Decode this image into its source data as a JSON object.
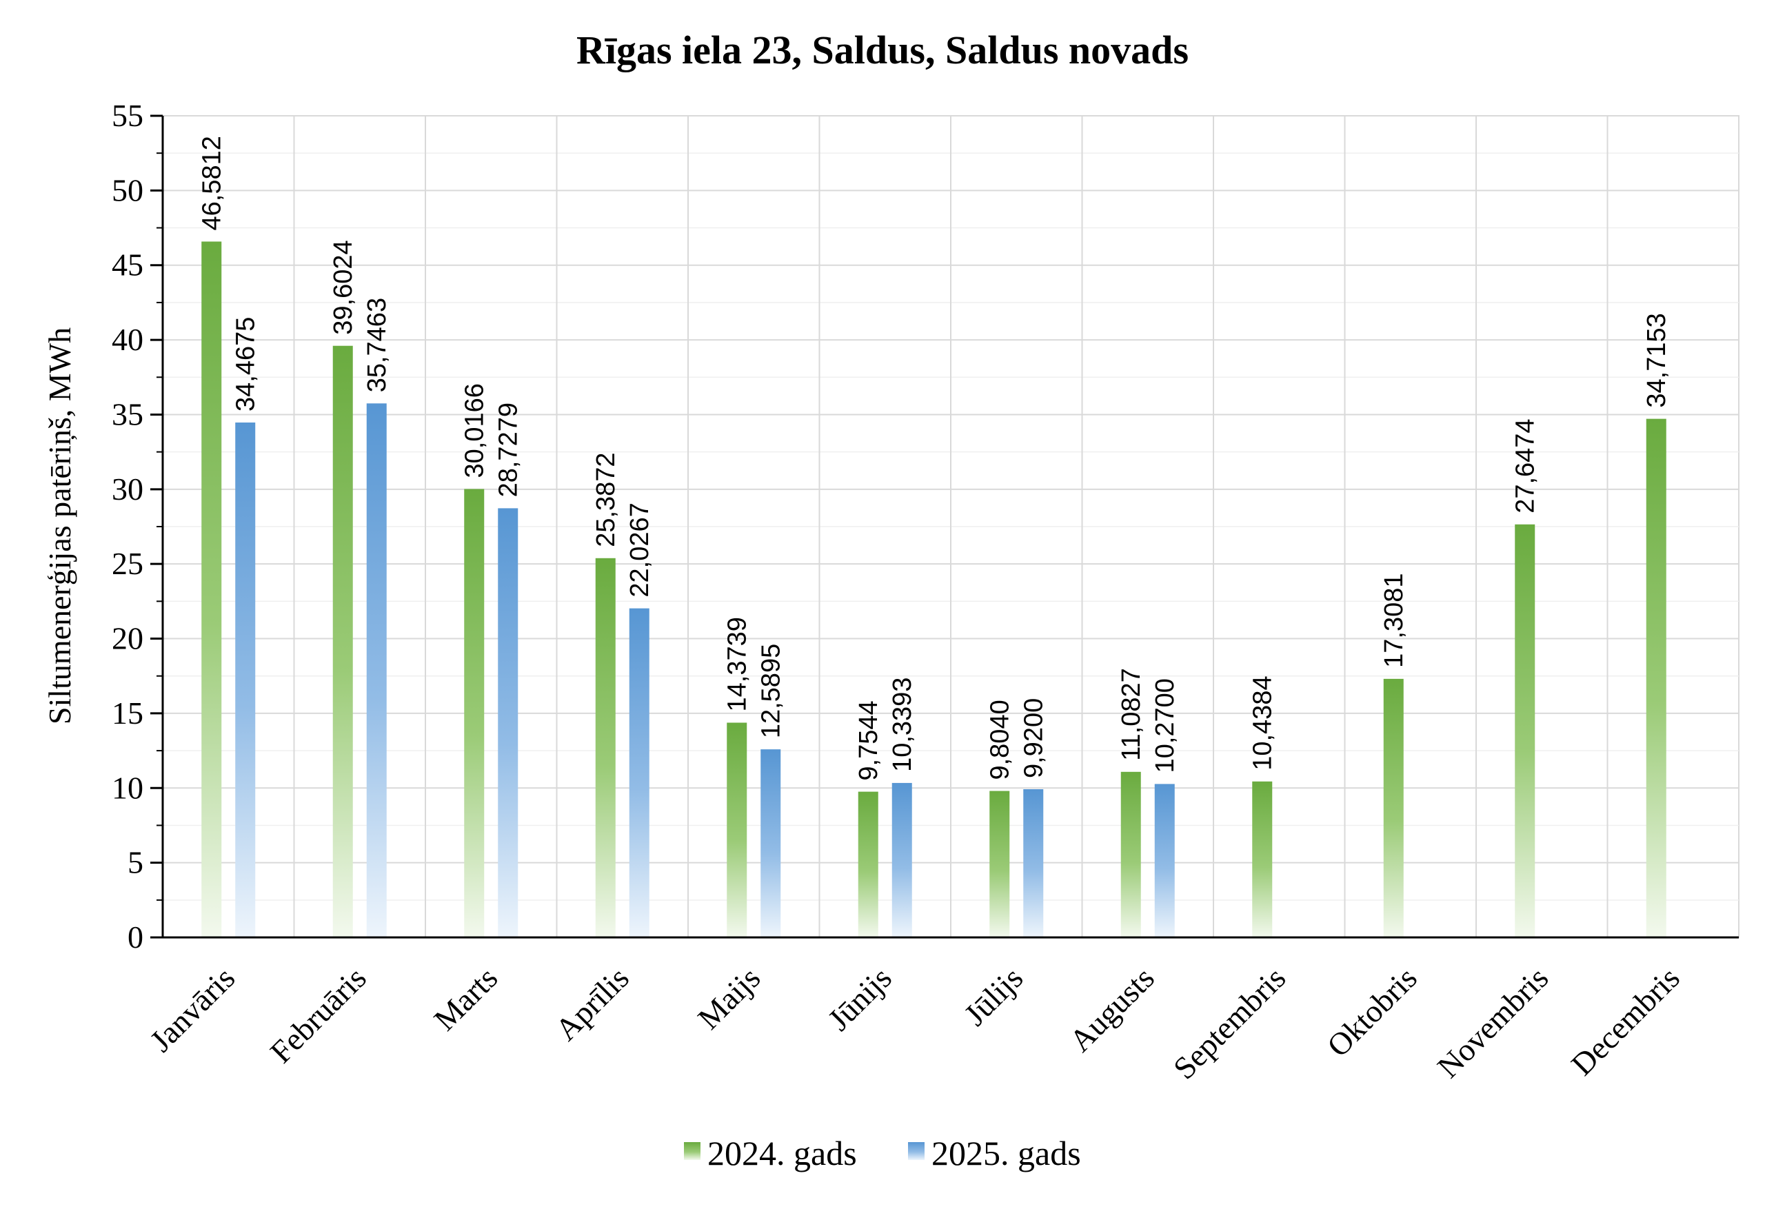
{
  "chart_data": {
    "type": "bar",
    "title": "Rīgas iela 23, Saldus, Saldus novads",
    "xlabel": "",
    "ylabel": "Siltumenerģijas patēriņš, MWh",
    "ylim": [
      0,
      55
    ],
    "yticks": [
      0,
      5,
      10,
      15,
      20,
      25,
      30,
      35,
      40,
      45,
      50,
      55
    ],
    "grid": true,
    "legend_position": "bottom",
    "categories": [
      "Janvāris",
      "Februāris",
      "Marts",
      "Aprīlis",
      "Maijs",
      "Jūnijs",
      "Jūlijs",
      "Augusts",
      "Septembris",
      "Oktobris",
      "Novembris",
      "Decembris"
    ],
    "series": [
      {
        "name": "2024. gads",
        "color": "#70ad47",
        "values": [
          46.5812,
          39.6024,
          30.0166,
          25.3872,
          14.3739,
          9.7544,
          9.804,
          11.0827,
          10.4384,
          17.3081,
          27.6474,
          34.7153
        ],
        "labels": [
          "46,5812",
          "39,6024",
          "30,0166",
          "25,3872",
          "14,3739",
          "9,7544",
          "9,8040",
          "11,0827",
          "10,4384",
          "17,3081",
          "27,6474",
          "34,7153"
        ]
      },
      {
        "name": "2025. gads",
        "color": "#5b9bd5",
        "values": [
          34.4675,
          35.7463,
          28.7279,
          22.0267,
          12.5895,
          10.3393,
          9.92,
          10.27,
          null,
          null,
          null,
          null
        ],
        "labels": [
          "34,4675",
          "35,7463",
          "28,7279",
          "22,0267",
          "12,5895",
          "10,3393",
          "9,9200",
          "10,2700",
          null,
          null,
          null,
          null
        ]
      }
    ]
  }
}
